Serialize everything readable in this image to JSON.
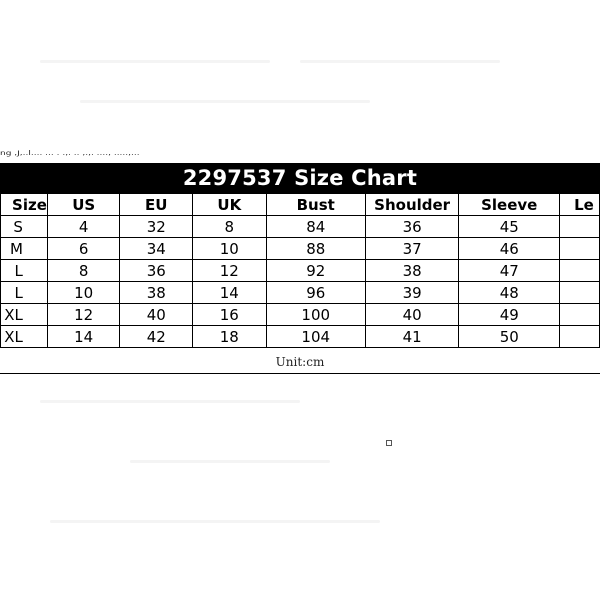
{
  "caption_fragment": "ng ,J,..l.... ... . .,. .. ,.,. ...., .....,...",
  "chart_data": {
    "type": "table",
    "title": "2297537 Size Chart",
    "columns": [
      "Size",
      "US",
      "EU",
      "UK",
      "Bust",
      "Shoulder",
      "Sleeve",
      "Le"
    ],
    "rows": [
      [
        "S",
        "4",
        "32",
        "8",
        "84",
        "36",
        "45",
        ""
      ],
      [
        "M",
        "6",
        "34",
        "10",
        "88",
        "37",
        "46",
        ""
      ],
      [
        "L",
        "8",
        "36",
        "12",
        "92",
        "38",
        "47",
        ""
      ],
      [
        "L",
        "10",
        "38",
        "14",
        "96",
        "39",
        "48",
        ""
      ],
      [
        "XL",
        "12",
        "40",
        "16",
        "100",
        "40",
        "49",
        ""
      ],
      [
        "XL",
        "14",
        "42",
        "18",
        "104",
        "41",
        "50",
        ""
      ]
    ],
    "unit_note": "Unit:cm"
  }
}
